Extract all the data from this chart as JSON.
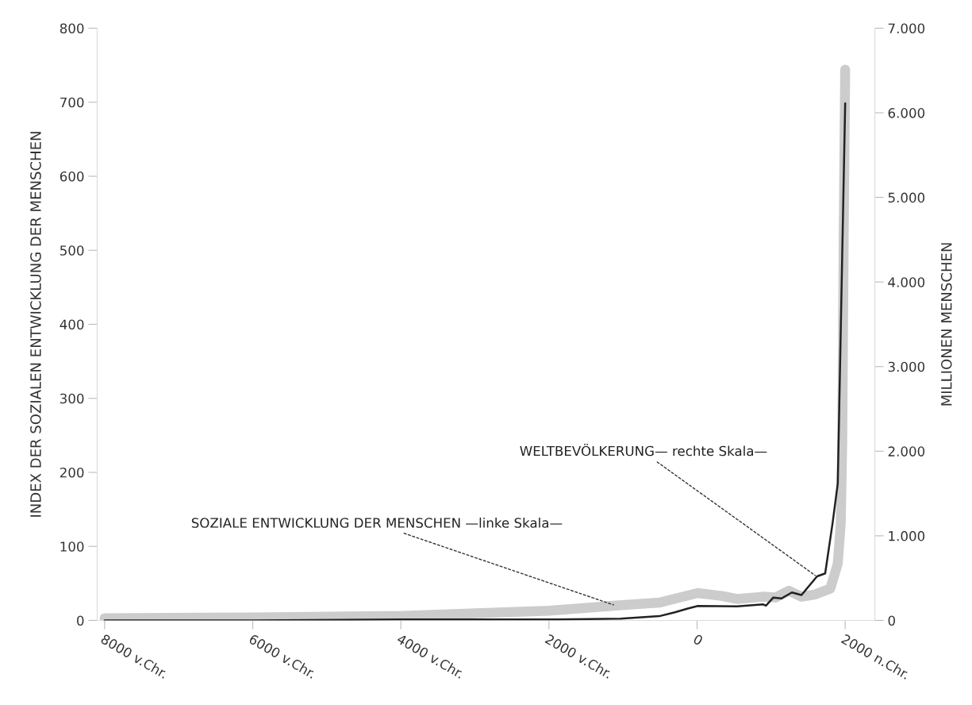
{
  "chart_data": {
    "type": "line",
    "ylabel": "INDEX DER SOZIALEN ENTWICKLUNG DER MENSCHEN",
    "y2label": "MILLIONEN MENSCHEN",
    "series": [
      {
        "color": "#cccccc",
        "axis": "y",
        "x": [
          -8000,
          -6000,
          -4000,
          -2000,
          -1100,
          -510,
          -230,
          10,
          330,
          540,
          890,
          1060,
          1240,
          1410,
          1590,
          1800,
          1900,
          1940,
          1960,
          1980,
          2000
        ],
        "values": [
          3,
          4,
          6,
          13,
          20,
          24,
          31,
          37,
          33,
          29,
          32,
          31,
          40,
          32,
          35,
          43,
          77,
          131,
          239,
          518,
          744
        ]
      },
      {
        "color": "#222222",
        "axis": "y2",
        "x": [
          -8000,
          -6000,
          -4000,
          -1900,
          -1030,
          -510,
          -300,
          -125,
          10,
          540,
          890,
          930,
          1030,
          1140,
          1280,
          1410,
          1620,
          1730,
          1830,
          1900,
          2000
        ],
        "values": [
          0,
          0,
          10,
          10,
          20,
          50,
          95,
          140,
          170,
          165,
          190,
          175,
          270,
          260,
          330,
          300,
          520,
          555,
          1150,
          1620,
          6110
        ]
      }
    ],
    "xlim": [
      -8100,
      2400
    ],
    "xticks": [
      {
        "value": -8000,
        "label": "8000 v.Chr."
      },
      {
        "value": -6000,
        "label": "6000 v.Chr."
      },
      {
        "value": -4000,
        "label": "4000 v.Chr."
      },
      {
        "value": -2000,
        "label": "2000 v.Chr."
      },
      0,
      {
        "value": 2000,
        "label": "2000 n.Chr."
      }
    ],
    "ylim": [
      0,
      800
    ],
    "yticks": [
      0,
      100,
      200,
      300,
      400,
      500,
      600,
      700,
      800
    ],
    "y2lim": [
      0,
      7000
    ],
    "y2ticks": [
      0,
      {
        "value": 1000,
        "label": "1.000"
      },
      {
        "value": 2000,
        "label": "2.000"
      },
      {
        "value": 3000,
        "label": "3.000"
      },
      {
        "value": 4000,
        "label": "4.000"
      },
      {
        "value": 5000,
        "label": "5.000"
      },
      {
        "value": 6000,
        "label": "6.000"
      },
      {
        "value": 7000,
        "label": "7.000"
      }
    ],
    "annotations": [
      {
        "text": "SOZIALE ENTWICKLUNG DER MENSCHEN —linke Skala—",
        "x": -1100,
        "y": 20
      },
      {
        "text": "WELTBEVÖLKERUNG— rechte Skala—",
        "x": 1620,
        "y": 59
      }
    ],
    "grid": false,
    "legend": false,
    "marker": "none",
    "line_style": "solid"
  }
}
